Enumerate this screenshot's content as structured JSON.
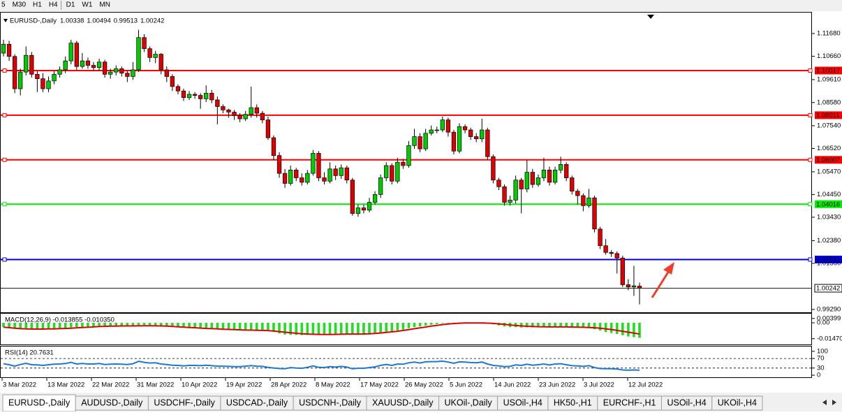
{
  "toolbar": {
    "timeframes": [
      "5",
      "M30",
      "H1",
      "H4",
      "D1",
      "W1",
      "MN"
    ]
  },
  "chart_data": [
    {
      "type": "candlestick",
      "symbol": "EURUSD-,Daily",
      "open": [
        1.108,
        1.112,
        1.1065,
        1.092,
        1.0995,
        1.107,
        1.0985,
        1.0965,
        1.092,
        1.0955,
        1.0985,
        1.1005,
        1.1045,
        1.1125,
        1.102,
        1.1045,
        1.1025,
        1.1015,
        1.104,
        1.0985,
        1.0995,
        1.101,
        1.099,
        1.0975,
        1.1005,
        1.115,
        1.11,
        1.106,
        1.1075,
        1.1005,
        1.0975,
        1.093,
        1.091,
        1.088,
        1.0895,
        1.089,
        1.0875,
        1.09,
        1.087,
        1.084,
        1.0825,
        1.0815,
        1.08,
        1.0785,
        1.0805,
        1.0835,
        1.081,
        1.078,
        1.07,
        1.062,
        1.054,
        1.0495,
        1.0555,
        1.052,
        1.05,
        1.054,
        1.063,
        1.052,
        1.0505,
        1.056,
        1.053,
        1.0565,
        1.051,
        1.036,
        1.0385,
        1.0375,
        1.041,
        1.0445,
        1.052,
        1.0575,
        1.0505,
        1.059,
        1.0575,
        1.0665,
        1.0705,
        1.065,
        1.072,
        1.0735,
        1.0735,
        1.078,
        1.0725,
        1.064,
        1.075,
        1.0735,
        1.0705,
        1.0695,
        1.0735,
        1.0615,
        1.051,
        1.048,
        1.041,
        1.042,
        1.051,
        1.047,
        1.0545,
        1.049,
        1.052,
        1.0555,
        1.05,
        1.0555,
        1.058,
        1.052,
        1.046,
        1.044,
        1.0395,
        1.043,
        1.029,
        1.0215,
        1.0185,
        1.018,
        1.016,
        1.004,
        1.003,
        1.00338
      ],
      "high": [
        1.114,
        1.1135,
        1.1075,
        1.101,
        1.111,
        1.1085,
        1.1,
        1.099,
        1.0975,
        1.1,
        1.102,
        1.1065,
        1.114,
        1.1135,
        1.108,
        1.106,
        1.104,
        1.1055,
        1.105,
        1.101,
        1.1025,
        1.102,
        1.1,
        1.104,
        1.1185,
        1.1165,
        1.111,
        1.109,
        1.108,
        1.102,
        1.0985,
        1.094,
        1.092,
        1.091,
        1.0905,
        1.09,
        1.0935,
        1.0915,
        1.0885,
        1.085,
        1.083,
        1.0825,
        1.081,
        1.082,
        1.093,
        1.085,
        1.082,
        1.0795,
        1.071,
        1.0635,
        1.056,
        1.0575,
        1.0565,
        1.054,
        1.0555,
        1.0645,
        1.064,
        1.0545,
        1.059,
        1.0575,
        1.058,
        1.0575,
        1.052,
        1.04,
        1.04,
        1.043,
        1.046,
        1.0535,
        1.059,
        1.0585,
        1.061,
        1.0605,
        1.0685,
        1.074,
        1.072,
        1.074,
        1.0755,
        1.075,
        1.0795,
        1.079,
        1.0735,
        1.0765,
        1.076,
        1.0745,
        1.072,
        1.0785,
        1.0745,
        1.0625,
        1.052,
        1.049,
        1.044,
        1.053,
        1.052,
        1.06,
        1.056,
        1.0535,
        1.061,
        1.057,
        1.057,
        1.0615,
        1.059,
        1.053,
        1.047,
        1.045,
        1.047,
        1.044,
        1.03,
        1.0245,
        1.0195,
        1.019,
        1.017,
        1.0065,
        1.0125,
        1.00494
      ],
      "low": [
        1.1065,
        1.1045,
        1.09,
        1.089,
        1.098,
        1.097,
        1.0905,
        1.0905,
        1.0905,
        1.094,
        1.097,
        1.099,
        1.103,
        1.1005,
        1.101,
        1.101,
        1.1,
        1.1,
        1.097,
        1.0965,
        1.098,
        1.0975,
        1.095,
        1.096,
        1.0995,
        1.1085,
        1.104,
        1.1035,
        1.0985,
        1.095,
        1.091,
        1.0895,
        1.0865,
        1.087,
        1.0875,
        1.083,
        1.086,
        1.0855,
        1.076,
        1.081,
        1.079,
        1.078,
        1.077,
        1.0775,
        1.079,
        1.079,
        1.0765,
        1.069,
        1.06,
        1.052,
        1.0475,
        1.0485,
        1.0505,
        1.0485,
        1.049,
        1.053,
        1.0505,
        1.049,
        1.0495,
        1.051,
        1.0515,
        1.0495,
        1.035,
        1.0345,
        1.036,
        1.0365,
        1.04,
        1.043,
        1.0505,
        1.049,
        1.0495,
        1.056,
        1.0565,
        1.065,
        1.0635,
        1.064,
        1.071,
        1.072,
        1.0725,
        1.0705,
        1.0625,
        1.063,
        1.072,
        1.069,
        1.068,
        1.068,
        1.06,
        1.0495,
        1.0465,
        1.0395,
        1.0395,
        1.0405,
        1.036,
        1.0455,
        1.0475,
        1.048,
        1.0505,
        1.0485,
        1.049,
        1.054,
        1.0505,
        1.0445,
        1.04,
        1.037,
        1.0385,
        1.0275,
        1.02,
        1.0175,
        1.0165,
        1.009,
        1.003,
        1.0015,
        0.999,
        0.99513
      ],
      "close": [
        1.112,
        1.1065,
        1.092,
        1.0995,
        1.107,
        1.0985,
        1.0965,
        1.092,
        1.0955,
        1.0985,
        1.1005,
        1.1045,
        1.1125,
        1.102,
        1.1045,
        1.1025,
        1.1015,
        1.104,
        1.0985,
        1.0995,
        1.101,
        1.099,
        1.0975,
        1.1005,
        1.115,
        1.11,
        1.106,
        1.1075,
        1.1005,
        1.0975,
        1.093,
        1.091,
        1.088,
        1.0895,
        1.089,
        1.0875,
        1.09,
        1.087,
        1.084,
        1.0825,
        1.0815,
        1.08,
        1.0785,
        1.0805,
        1.0835,
        1.081,
        1.078,
        1.07,
        1.062,
        1.054,
        1.0495,
        1.0555,
        1.052,
        1.05,
        1.054,
        1.063,
        1.052,
        1.0505,
        1.056,
        1.053,
        1.0565,
        1.051,
        1.036,
        1.0385,
        1.0375,
        1.041,
        1.0445,
        1.052,
        1.0575,
        1.0505,
        1.059,
        1.0575,
        1.0665,
        1.0705,
        1.065,
        1.072,
        1.0735,
        1.0735,
        1.078,
        1.0725,
        1.064,
        1.075,
        1.0735,
        1.0705,
        1.0695,
        1.0735,
        1.0615,
        1.051,
        1.048,
        1.041,
        1.042,
        1.051,
        1.047,
        1.0545,
        1.049,
        1.052,
        1.0555,
        1.05,
        1.0555,
        1.058,
        1.052,
        1.046,
        1.044,
        1.0395,
        1.043,
        1.029,
        1.0215,
        1.0185,
        1.018,
        1.016,
        1.004,
        1.003,
        1.0035,
        1.00242
      ],
      "up_color": "#00cc00",
      "down_color": "#e00000",
      "ylim": [
        0.9913,
        1.1262
      ],
      "yticks": [
        {
          "value": 1.1168,
          "label": "1.11680"
        },
        {
          "value": 1.1066,
          "label": "1.10660"
        },
        {
          "value": 1.0961,
          "label": "1.09610"
        },
        {
          "value": 1.0858,
          "label": "1.08580"
        },
        {
          "value": 1.0754,
          "label": "1.07540"
        },
        {
          "value": 1.0652,
          "label": "1.06520"
        },
        {
          "value": 1.0547,
          "label": "1.05470"
        },
        {
          "value": 1.0445,
          "label": "1.04450"
        },
        {
          "value": 1.0343,
          "label": "1.03430"
        },
        {
          "value": 1.0238,
          "label": "1.02380"
        },
        {
          "value": 1.0136,
          "label": "1.01360"
        },
        {
          "value": 0.9929,
          "label": "0.99290"
        }
      ],
      "levels": [
        {
          "value": 1.10017,
          "label": "1.10017",
          "color": "#ff0000",
          "text_color": "#ffffff"
        },
        {
          "value": 1.08011,
          "label": "1.08011",
          "color": "#ff0000",
          "text_color": "#ffffff"
        },
        {
          "value": 1.06007,
          "label": "1.06007",
          "color": "#ff0000",
          "text_color": "#ffffff"
        },
        {
          "value": 1.04016,
          "label": "1.04016",
          "color": "#00ee00",
          "text_color": "#000000"
        },
        {
          "value": 1.01531,
          "label": "1.01531",
          "color": "#0000dd",
          "text_color": "#ffffff"
        }
      ],
      "date_labels": [
        "3 Mar 2022",
        "13 Mar 2022",
        "22 Mar 2022",
        "31 Mar 2022",
        "10 Apr 2022",
        "19 Apr 2022",
        "28 Apr 2022",
        "8 May 2022",
        "17 May 2022",
        "26 May 2022",
        "5 Jun 2022",
        "14 Jun 2022",
        "23 Jun 2022",
        "3 Jul 2022",
        "12 Jul 2022"
      ]
    },
    {
      "type": "macd",
      "header": "MACD(12,26,9) -0.013855 -0.010350",
      "histogram": [
        -0.004,
        -0.0045,
        -0.0055,
        -0.006,
        -0.0055,
        -0.0055,
        -0.0058,
        -0.006,
        -0.006,
        -0.0058,
        -0.0055,
        -0.005,
        -0.0042,
        -0.004,
        -0.0038,
        -0.0036,
        -0.0035,
        -0.0033,
        -0.0034,
        -0.0034,
        -0.0033,
        -0.0033,
        -0.0034,
        -0.0032,
        -0.0022,
        -0.002,
        -0.0021,
        -0.0022,
        -0.0026,
        -0.003,
        -0.0035,
        -0.004,
        -0.0045,
        -0.0048,
        -0.005,
        -0.0053,
        -0.0054,
        -0.0056,
        -0.006,
        -0.0062,
        -0.0064,
        -0.0066,
        -0.0068,
        -0.0068,
        -0.0066,
        -0.0066,
        -0.0068,
        -0.0075,
        -0.0085,
        -0.0098,
        -0.0108,
        -0.011,
        -0.0112,
        -0.0114,
        -0.0112,
        -0.0105,
        -0.0106,
        -0.0107,
        -0.0104,
        -0.0103,
        -0.01,
        -0.01,
        -0.011,
        -0.0112,
        -0.0112,
        -0.0108,
        -0.0102,
        -0.0092,
        -0.0082,
        -0.0078,
        -0.007,
        -0.0062,
        -0.005,
        -0.004,
        -0.0034,
        -0.0026,
        -0.0018,
        -0.0012,
        -0.0005,
        -0.0003,
        -0.0004,
        0.0002,
        0.0004,
        0.0003,
        0.0002,
        0.0004,
        -0.0004,
        -0.0014,
        -0.0024,
        -0.0034,
        -0.004,
        -0.004,
        -0.0044,
        -0.0042,
        -0.0043,
        -0.0042,
        -0.004,
        -0.004,
        -0.0038,
        -0.0036,
        -0.0037,
        -0.004,
        -0.0043,
        -0.0048,
        -0.005,
        -0.006,
        -0.0072,
        -0.0084,
        -0.0094,
        -0.0103,
        -0.0115,
        -0.0126,
        -0.0133,
        -0.0139
      ],
      "signal": [
        -0.004,
        -0.0045,
        -0.005,
        -0.0054,
        -0.0057,
        -0.0058,
        -0.0058,
        -0.0058,
        -0.0057,
        -0.0056,
        -0.0054,
        -0.0052,
        -0.005,
        -0.0047,
        -0.0044,
        -0.0041,
        -0.0038,
        -0.0035,
        -0.0033,
        -0.0031,
        -0.003,
        -0.0029,
        -0.0029,
        -0.0029,
        -0.0028,
        -0.0027,
        -0.0027,
        -0.0028,
        -0.0029,
        -0.0031,
        -0.0034,
        -0.0037,
        -0.004,
        -0.0043,
        -0.0046,
        -0.0049,
        -0.0052,
        -0.0054,
        -0.0057,
        -0.0059,
        -0.0061,
        -0.0063,
        -0.0065,
        -0.0067,
        -0.0068,
        -0.0069,
        -0.007,
        -0.0072,
        -0.0076,
        -0.0081,
        -0.0087,
        -0.0092,
        -0.0097,
        -0.0101,
        -0.0104,
        -0.0106,
        -0.0107,
        -0.0108,
        -0.0108,
        -0.0107,
        -0.0106,
        -0.0104,
        -0.0104,
        -0.0104,
        -0.0103,
        -0.0101,
        -0.0098,
        -0.0094,
        -0.0089,
        -0.0084,
        -0.0078,
        -0.0071,
        -0.0063,
        -0.0055,
        -0.0047,
        -0.0039,
        -0.0031,
        -0.0024,
        -0.0017,
        -0.0011,
        -0.0007,
        -0.0004,
        -0.0002,
        -0.0001,
        -0.0001,
        -0.0001,
        -0.0003,
        -0.0006,
        -0.001,
        -0.0015,
        -0.002,
        -0.0025,
        -0.0029,
        -0.0032,
        -0.0034,
        -0.0036,
        -0.0037,
        -0.0038,
        -0.0038,
        -0.0038,
        -0.0038,
        -0.0039,
        -0.004,
        -0.0041,
        -0.0043,
        -0.0046,
        -0.005,
        -0.0056,
        -0.0062,
        -0.007,
        -0.0078,
        -0.0087,
        -0.0095,
        -0.0104
      ],
      "histogram_color": "#22dd22",
      "signal_color": "#dd0000",
      "ylim": [
        -0.02,
        0.0084
      ],
      "yticks": [
        {
          "value": 0.00399,
          "label": "0.00399"
        },
        {
          "value": 0,
          "label": "0.00"
        },
        {
          "value": -0.0147,
          "label": "-0.01470"
        }
      ]
    },
    {
      "type": "rsi",
      "header": "RSI(14) 20.7631",
      "values": [
        48,
        44,
        38,
        45,
        50,
        44,
        43,
        41,
        44,
        46,
        47,
        49,
        54,
        47,
        49,
        47,
        47,
        49,
        45,
        46,
        47,
        46,
        45,
        48,
        58,
        54,
        51,
        52,
        47,
        45,
        42,
        41,
        39,
        41,
        41,
        40,
        42,
        40,
        38,
        38,
        37,
        36,
        36,
        38,
        40,
        38,
        37,
        33,
        30,
        28,
        27,
        32,
        30,
        29,
        33,
        39,
        33,
        32,
        36,
        34,
        37,
        34,
        27,
        29,
        29,
        32,
        35,
        41,
        45,
        41,
        47,
        46,
        52,
        55,
        51,
        56,
        57,
        57,
        59,
        55,
        50,
        56,
        55,
        53,
        52,
        55,
        47,
        41,
        39,
        36,
        37,
        43,
        41,
        46,
        42,
        44,
        47,
        43,
        47,
        48,
        44,
        40,
        39,
        37,
        40,
        32,
        28,
        27,
        27,
        26,
        22,
        21,
        22,
        21
      ],
      "color": "#1e78d2",
      "ylim": [
        -8.6,
        120
      ],
      "yticks": [
        100,
        70,
        30,
        0
      ],
      "levels": [
        70,
        30
      ]
    }
  ],
  "tabs": [
    "EURUSD-,Daily",
    "AUDUSD-,Daily",
    "USDCHF-,Daily",
    "USDCAD-,Daily",
    "USDCNH-,Daily",
    "XAUUSD-,Daily",
    "UKOil-,Daily",
    "USOil-,H4",
    "HK50-,H1",
    "EURCHF-,H1",
    "USOil-,H4",
    "UKOil-,H4"
  ]
}
